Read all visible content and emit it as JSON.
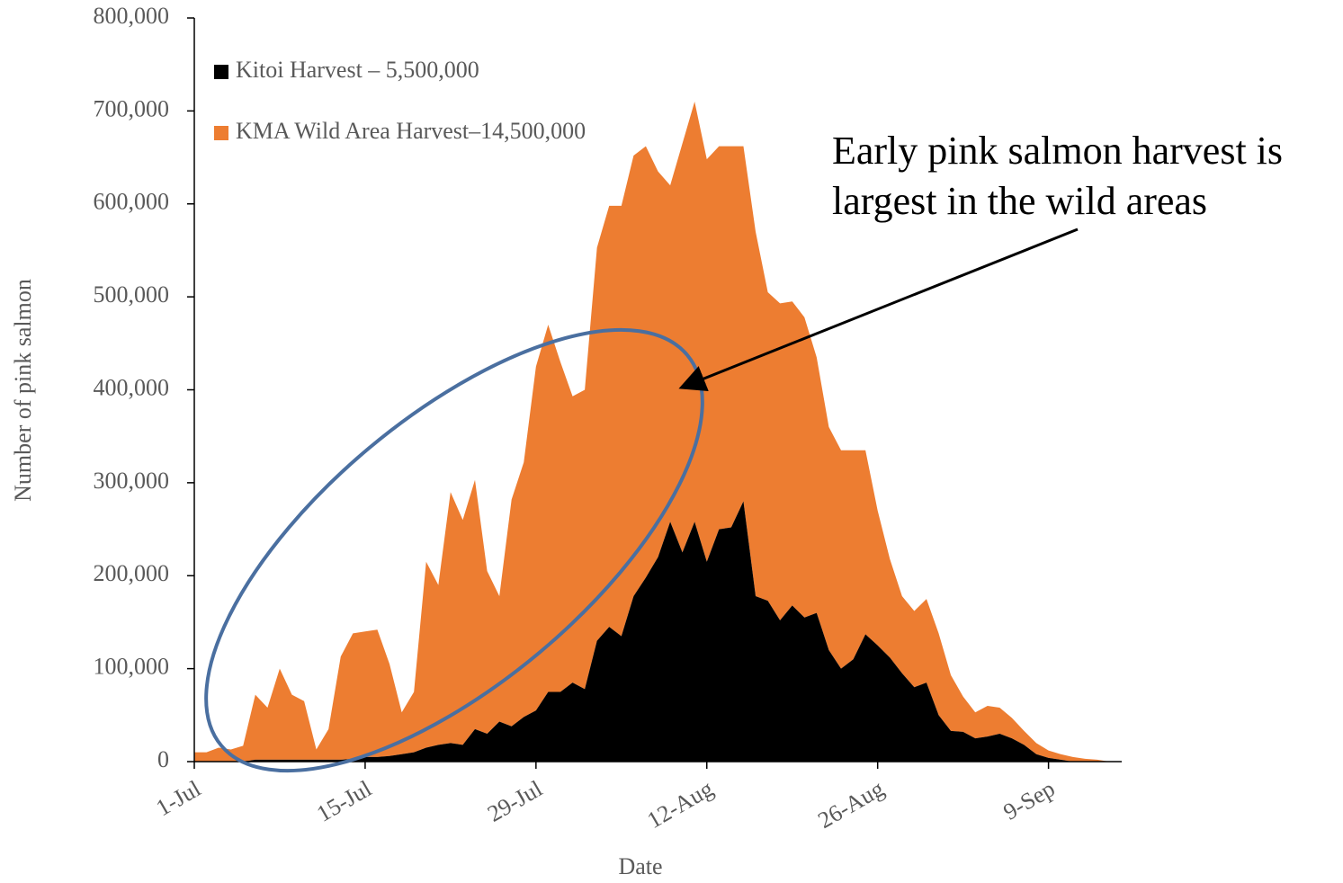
{
  "chart_data": {
    "type": "area",
    "stacked": true,
    "x_label": "Date",
    "y_label": "Number of pink salmon",
    "annotation": "Early pink salmon harvest is largest in the wild areas",
    "categories": [
      "1-Jul",
      null,
      null,
      null,
      null,
      null,
      null,
      null,
      null,
      null,
      null,
      null,
      null,
      null,
      "15-Jul",
      null,
      null,
      null,
      null,
      null,
      null,
      null,
      null,
      null,
      null,
      null,
      null,
      null,
      "29-Jul",
      null,
      null,
      null,
      null,
      null,
      null,
      null,
      null,
      null,
      null,
      null,
      null,
      null,
      "12-Aug",
      null,
      null,
      null,
      null,
      null,
      null,
      null,
      null,
      null,
      null,
      null,
      null,
      null,
      "26-Aug",
      null,
      null,
      null,
      null,
      null,
      null,
      null,
      null,
      null,
      null,
      null,
      null,
      null,
      "9-Sep",
      null,
      null,
      null,
      null,
      null
    ],
    "series": [
      {
        "name": "Kitoi Harvest – 5,500,000",
        "color": "#000000",
        "values": [
          0,
          0,
          0,
          0,
          0,
          2000,
          2000,
          2000,
          2000,
          2000,
          2000,
          2000,
          2000,
          3000,
          5000,
          5000,
          6000,
          8000,
          10000,
          15000,
          18000,
          20000,
          18000,
          35000,
          30000,
          43000,
          38000,
          48000,
          55000,
          75000,
          75000,
          85000,
          78000,
          130000,
          145000,
          135000,
          178000,
          198000,
          220000,
          258000,
          225000,
          258000,
          215000,
          250000,
          252000,
          280000,
          178000,
          173000,
          152000,
          168000,
          155000,
          160000,
          120000,
          100000,
          110000,
          137000,
          125000,
          112000,
          95000,
          80000,
          85000,
          50000,
          33000,
          32000,
          25000,
          27000,
          30000,
          25000,
          18000,
          8000,
          4000,
          2000,
          0,
          0,
          0,
          0
        ]
      },
      {
        "name": "KMA Wild Area Harvest–14,500,000",
        "color": "#ed7d31",
        "values": [
          10000,
          10000,
          15000,
          13000,
          17000,
          70000,
          56000,
          98000,
          70000,
          63000,
          11000,
          33000,
          111000,
          135000,
          135000,
          137000,
          99000,
          45000,
          65000,
          200000,
          172000,
          270000,
          242000,
          268000,
          175000,
          135000,
          244000,
          274000,
          370000,
          395000,
          355000,
          308000,
          322000,
          423000,
          453000,
          463000,
          474000,
          464000,
          415000,
          362000,
          440000,
          452000,
          433000,
          412000,
          410000,
          382000,
          392000,
          332000,
          341000,
          327000,
          323000,
          275000,
          240000,
          235000,
          225000,
          198000,
          145000,
          106000,
          83000,
          82000,
          90000,
          88000,
          60000,
          38000,
          28000,
          33000,
          28000,
          22000,
          15000,
          12000,
          8000,
          6000,
          5000,
          3000,
          2000,
          0
        ]
      }
    ],
    "ylim": [
      0,
      800000
    ],
    "yticks": [
      0,
      {
        "value": 100000,
        "label": "100,000"
      },
      {
        "value": 200000,
        "label": "200,000"
      },
      {
        "value": 300000,
        "label": "300,000"
      },
      {
        "value": 400000,
        "label": "400,000"
      },
      {
        "value": 500000,
        "label": "500,000"
      },
      {
        "value": 600000,
        "label": "600,000"
      },
      {
        "value": 700000,
        "label": "700,000"
      },
      {
        "value": 800000,
        "label": "800,000"
      }
    ],
    "legend": "upper left"
  }
}
